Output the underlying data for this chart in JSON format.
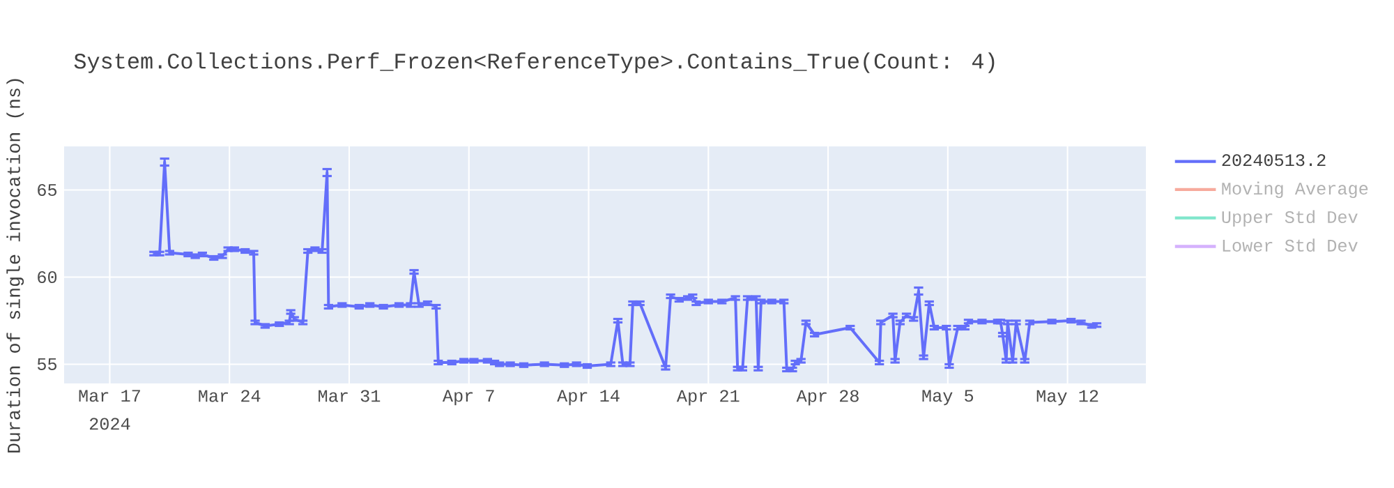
{
  "chart_data": {
    "type": "line",
    "title": "System.Collections.Perf_Frozen<ReferenceType>.Contains_True(Count: 4)",
    "ylabel": "Duration of single invocation (ns)",
    "annotations": [
      "2024"
    ],
    "x": [
      "2024-03-19T14:00",
      "2024-03-19T22:00",
      "2024-03-20T05:00",
      "2024-03-20T12:00",
      "2024-03-21T14:00",
      "2024-03-22T00:00",
      "2024-03-22T10:00",
      "2024-03-23T02:00",
      "2024-03-23T14:00",
      "2024-03-23T22:00",
      "2024-03-24T07:00",
      "2024-03-24T22:00",
      "2024-03-25T10:00",
      "2024-03-25T12:00",
      "2024-03-26T02:00",
      "2024-03-26T22:00",
      "2024-03-27T12:00",
      "2024-03-27T14:00",
      "2024-03-27T19:00",
      "2024-03-28T07:00",
      "2024-03-28T14:00",
      "2024-03-29T00:00",
      "2024-03-29T10:00",
      "2024-03-29T17:00",
      "2024-03-29T19:00",
      "2024-03-30T14:00",
      "2024-03-31T14:00",
      "2024-04-01T05:00",
      "2024-04-02T00:00",
      "2024-04-02T22:00",
      "2024-04-03T14:00",
      "2024-04-03T19:00",
      "2024-04-04T02:00",
      "2024-04-04T14:00",
      "2024-04-05T02:00",
      "2024-04-05T05:00",
      "2024-04-06T00:00",
      "2024-04-06T17:00",
      "2024-04-07T07:00",
      "2024-04-08T02:00",
      "2024-04-08T12:00",
      "2024-04-08T19:00",
      "2024-04-09T10:00",
      "2024-04-10T05:00",
      "2024-04-11T10:00",
      "2024-04-12T14:00",
      "2024-04-13T07:00",
      "2024-04-13T22:00",
      "2024-04-15T07:00",
      "2024-04-15T17:00",
      "2024-04-16T00:00",
      "2024-04-16T10:00",
      "2024-04-16T14:00",
      "2024-04-17T00:00",
      "2024-04-18T12:00",
      "2024-04-18T19:00",
      "2024-04-19T07:00",
      "2024-04-19T19:00",
      "2024-04-20T02:00",
      "2024-04-20T07:00",
      "2024-04-21T00:00",
      "2024-04-21T19:00",
      "2024-04-22T14:00",
      "2024-04-22T17:00",
      "2024-04-23T00:00",
      "2024-04-23T07:00",
      "2024-04-23T19:00",
      "2024-04-23T22:00",
      "2024-04-24T02:00",
      "2024-04-24T17:00",
      "2024-04-25T10:00",
      "2024-04-25T14:00",
      "2024-04-25T22:00",
      "2024-04-26T02:00",
      "2024-04-26T10:00",
      "2024-04-26T17:00",
      "2024-04-27T05:00",
      "2024-04-29T07:00",
      "2024-05-01T00:00",
      "2024-05-01T02:00",
      "2024-05-01T19:00",
      "2024-05-01T22:00",
      "2024-05-02T05:00",
      "2024-05-02T14:00",
      "2024-05-03T00:00",
      "2024-05-03T07:00",
      "2024-05-03T14:00",
      "2024-05-03T22:00",
      "2024-05-04T05:00",
      "2024-05-04T22:00",
      "2024-05-05T02:00",
      "2024-05-05T14:00",
      "2024-05-06T00:00",
      "2024-05-06T05:00",
      "2024-05-07T00:00",
      "2024-05-07T22:00",
      "2024-05-08T02:00",
      "2024-05-08T05:00",
      "2024-05-08T10:00",
      "2024-05-08T12:00",
      "2024-05-08T19:00",
      "2024-05-09T00:00",
      "2024-05-09T12:00",
      "2024-05-09T19:00",
      "2024-05-11T02:00",
      "2024-05-12T05:00",
      "2024-05-12T19:00",
      "2024-05-13T10:00",
      "2024-05-13T17:00"
    ],
    "series": [
      {
        "name": "20240513.2",
        "color": "#636efa",
        "values": [
          61.35,
          61.35,
          66.6,
          61.4,
          61.3,
          61.2,
          61.3,
          61.1,
          61.2,
          61.6,
          61.6,
          61.5,
          61.4,
          57.4,
          57.2,
          57.3,
          57.4,
          58.0,
          57.6,
          57.4,
          61.5,
          61.6,
          61.5,
          66.0,
          58.3,
          58.4,
          58.3,
          58.4,
          58.3,
          58.4,
          58.4,
          60.3,
          58.4,
          58.5,
          58.3,
          55.1,
          55.1,
          55.2,
          55.2,
          55.2,
          55.1,
          55.0,
          55.0,
          54.95,
          55.0,
          54.95,
          55.0,
          54.9,
          55.0,
          57.5,
          55.0,
          55.0,
          58.5,
          58.5,
          54.8,
          58.9,
          58.7,
          58.8,
          58.9,
          58.5,
          58.6,
          58.6,
          58.8,
          54.75,
          54.75,
          58.8,
          58.8,
          54.75,
          58.6,
          58.6,
          58.6,
          54.7,
          54.7,
          55.1,
          55.2,
          57.4,
          56.7,
          57.1,
          55.1,
          57.4,
          57.8,
          55.2,
          57.4,
          57.8,
          57.6,
          59.2,
          55.4,
          58.5,
          57.1,
          57.1,
          54.9,
          57.1,
          57.1,
          57.45,
          57.45,
          57.45,
          57.45,
          56.7,
          55.2,
          57.4,
          55.2,
          57.4,
          55.2,
          57.4,
          57.45,
          57.5,
          57.4,
          57.2,
          57.25
        ],
        "errors": [
          0.1,
          0.1,
          0.2,
          0.1,
          0.1,
          0.1,
          0.1,
          0.1,
          0.1,
          0.1,
          0.1,
          0.1,
          0.1,
          0.1,
          0.1,
          0.1,
          0.1,
          0.1,
          0.1,
          0.1,
          0.1,
          0.1,
          0.1,
          0.2,
          0.1,
          0.1,
          0.1,
          0.1,
          0.1,
          0.1,
          0.1,
          0.1,
          0.1,
          0.1,
          0.1,
          0.1,
          0.1,
          0.1,
          0.1,
          0.1,
          0.1,
          0.1,
          0.1,
          0.1,
          0.1,
          0.1,
          0.1,
          0.1,
          0.1,
          0.1,
          0.1,
          0.1,
          0.1,
          0.1,
          0.1,
          0.1,
          0.1,
          0.1,
          0.1,
          0.1,
          0.1,
          0.1,
          0.1,
          0.1,
          0.1,
          0.1,
          0.1,
          0.1,
          0.1,
          0.1,
          0.1,
          0.1,
          0.1,
          0.1,
          0.1,
          0.1,
          0.1,
          0.1,
          0.1,
          0.1,
          0.1,
          0.1,
          0.1,
          0.1,
          0.1,
          0.2,
          0.1,
          0.1,
          0.1,
          0.1,
          0.1,
          0.1,
          0.1,
          0.1,
          0.1,
          0.1,
          0.1,
          0.1,
          0.1,
          0.1,
          0.1,
          0.1,
          0.1,
          0.1,
          0.1,
          0.1,
          0.1,
          0.1,
          0.1
        ]
      },
      {
        "name": "Moving Average",
        "color": "#f7aa9d",
        "values": [
          null,
          null,
          null,
          null,
          null,
          null,
          null,
          null,
          null,
          null,
          null,
          null,
          null,
          null,
          null,
          null,
          null,
          null,
          null,
          null,
          null,
          null,
          null,
          null,
          null,
          null,
          null,
          null,
          null,
          null,
          null,
          null,
          null,
          null,
          null,
          null,
          null,
          null,
          null,
          null,
          null,
          null,
          null,
          null,
          null,
          null,
          null,
          null,
          null,
          null,
          null,
          null,
          null,
          null,
          null,
          null,
          null,
          null,
          null,
          null,
          null,
          null,
          null,
          null,
          null,
          null,
          null,
          null,
          null,
          null,
          null,
          null,
          null,
          null,
          null,
          null,
          null,
          null,
          null,
          null,
          null,
          null,
          null,
          null,
          null,
          null,
          null,
          null,
          null,
          null,
          null,
          null,
          null,
          null,
          null,
          null,
          null,
          null,
          null,
          null,
          null,
          null,
          null,
          null,
          null,
          null,
          null,
          null,
          null
        ]
      },
      {
        "name": "Upper Std Dev",
        "color": "#80e6cb",
        "values": [
          null,
          null,
          null,
          null,
          null,
          null,
          null,
          null,
          null,
          null,
          null,
          null,
          null,
          null,
          null,
          null,
          null,
          null,
          null,
          null,
          null,
          null,
          null,
          null,
          null,
          null,
          null,
          null,
          null,
          null,
          null,
          null,
          null,
          null,
          null,
          null,
          null,
          null,
          null,
          null,
          null,
          null,
          null,
          null,
          null,
          null,
          null,
          null,
          null,
          null,
          null,
          null,
          null,
          null,
          null,
          null,
          null,
          null,
          null,
          null,
          null,
          null,
          null,
          null,
          null,
          null,
          null,
          null,
          null,
          null,
          null,
          null,
          null,
          null,
          null,
          null,
          null,
          null,
          null,
          null,
          null,
          null,
          null,
          null,
          null,
          null,
          null,
          null,
          null,
          null,
          null,
          null,
          null,
          null,
          null,
          null,
          null,
          null,
          null,
          null,
          null,
          null,
          null,
          null,
          null,
          null,
          null,
          null,
          null
        ]
      },
      {
        "name": "Lower Std Dev",
        "color": "#d5b1fd",
        "values": [
          null,
          null,
          null,
          null,
          null,
          null,
          null,
          null,
          null,
          null,
          null,
          null,
          null,
          null,
          null,
          null,
          null,
          null,
          null,
          null,
          null,
          null,
          null,
          null,
          null,
          null,
          null,
          null,
          null,
          null,
          null,
          null,
          null,
          null,
          null,
          null,
          null,
          null,
          null,
          null,
          null,
          null,
          null,
          null,
          null,
          null,
          null,
          null,
          null,
          null,
          null,
          null,
          null,
          null,
          null,
          null,
          null,
          null,
          null,
          null,
          null,
          null,
          null,
          null,
          null,
          null,
          null,
          null,
          null,
          null,
          null,
          null,
          null,
          null,
          null,
          null,
          null,
          null,
          null,
          null,
          null,
          null,
          null,
          null,
          null,
          null,
          null,
          null,
          null,
          null,
          null,
          null,
          null,
          null,
          null,
          null,
          null,
          null,
          null,
          null,
          null,
          null,
          null,
          null,
          null,
          null,
          null,
          null,
          null
        ]
      }
    ],
    "xlim": [
      "2024-03-14T08:00",
      "2024-05-16T14:00"
    ],
    "xticks": [
      {
        "value": "2024-03-17",
        "label": "Mar 17"
      },
      {
        "value": "2024-03-24",
        "label": "Mar 24"
      },
      {
        "value": "2024-03-31",
        "label": "Mar 31"
      },
      {
        "value": "2024-04-07",
        "label": "Apr 7"
      },
      {
        "value": "2024-04-14",
        "label": "Apr 14"
      },
      {
        "value": "2024-04-21",
        "label": "Apr 21"
      },
      {
        "value": "2024-04-28",
        "label": "Apr 28"
      },
      {
        "value": "2024-05-05",
        "label": "May 5"
      },
      {
        "value": "2024-05-12",
        "label": "May 12"
      }
    ],
    "ylim": [
      53.9,
      67.5
    ],
    "yticks": [
      55,
      60,
      65
    ],
    "grid": true,
    "legend": "top right",
    "marker": "none",
    "line_style": "solid"
  }
}
